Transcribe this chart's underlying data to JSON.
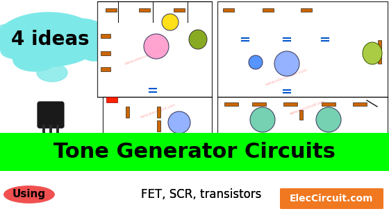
{
  "bg_color": "#ffffff",
  "green_bar_color": "#00ff00",
  "title_text": "Tone Generator Circuits",
  "title_color": "#000000",
  "title_fontsize": 22,
  "ideas_text": "4 ideas",
  "ideas_fontsize": 20,
  "cyan_splash_color": "#7de8e8",
  "subtitle_oval_color": "#f05050",
  "subtitle_text": "Using  FET, SCR, transistors",
  "subtitle_fontsize": 12,
  "brand_text": "ElecCircuit.com",
  "brand_bg": "#f07820",
  "brand_color": "#ffffff",
  "brand_fontsize": 10,
  "watermark_text": "www.eleccircuit.com",
  "watermark_color": "#ff9999",
  "circuit_border": "#333333",
  "resistor_color": "#cc6600",
  "capacitor_color": "#0055cc",
  "wire_color": "#000000",
  "transistor_pink": "#ff99cc",
  "transistor_blue": "#88aaff",
  "transistor_teal": "#66ccaa",
  "speaker_green": "#44aa44",
  "speaker_olive": "#88aa22",
  "led_yellow": "#ffdd00",
  "led_red": "#ff2200",
  "led_blue": "#2255ff",
  "transistor_body": "#1a1a1a",
  "transistor_legs": "#2a2a2a"
}
